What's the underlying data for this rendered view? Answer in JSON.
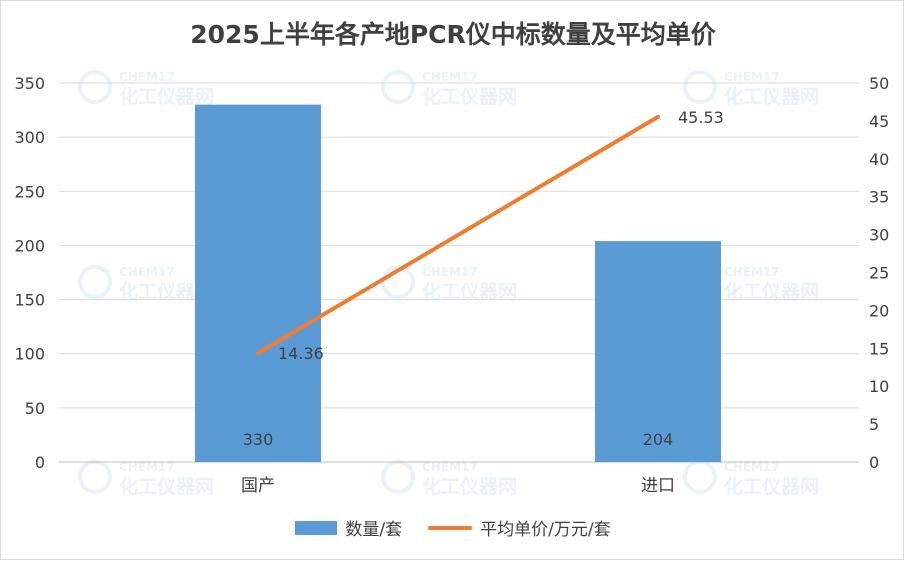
{
  "chart_data": {
    "type": "bar",
    "title": "2025上半年各产地PCR仪中标数量及平均单价",
    "categories": [
      "国产",
      "进口"
    ],
    "series": [
      {
        "name": "数量/套",
        "type": "bar",
        "axis": "left",
        "values": [
          330,
          204
        ],
        "color": "#5b9bd5"
      },
      {
        "name": "平均单价/万元/套",
        "type": "line",
        "axis": "right",
        "values": [
          14.36,
          45.53
        ],
        "color": "#ed7d31"
      }
    ],
    "y_left": {
      "range": [
        0,
        350
      ],
      "ticks": [
        "0",
        "50",
        "100",
        "150",
        "200",
        "250",
        "300",
        "350"
      ]
    },
    "y_right": {
      "range": [
        0,
        50
      ],
      "ticks": [
        "0",
        "5",
        "10",
        "15",
        "20",
        "25",
        "30",
        "35",
        "40",
        "45",
        "50"
      ]
    },
    "data_labels": {
      "bar": [
        "330",
        "204"
      ],
      "line": [
        "14.36",
        "45.53"
      ]
    },
    "grid": true,
    "legend_position": "bottom"
  },
  "watermark": {
    "brand": "CHEM17",
    "name": "化工仪器网"
  }
}
